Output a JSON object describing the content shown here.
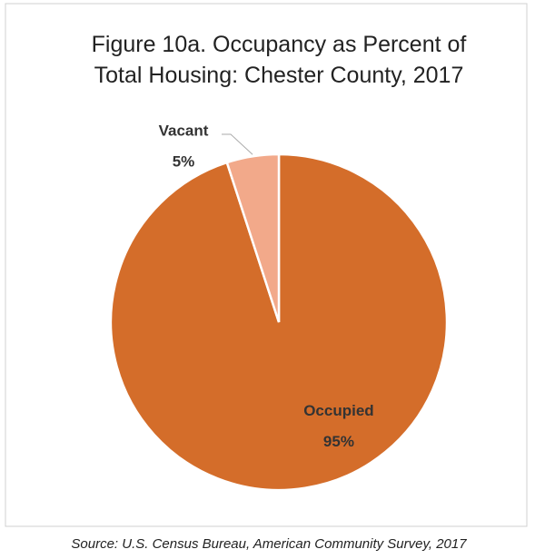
{
  "chart_data": {
    "type": "pie",
    "title": "Figure 10a. Occupancy as Percent of Total Housing: Chester County, 2017",
    "categories": [
      "Occupied",
      "Vacant"
    ],
    "values": [
      95,
      5
    ],
    "value_labels": [
      "95%",
      "5%"
    ],
    "colors": [
      "#d46d2a",
      "#f2a98a"
    ],
    "source": "Source: U.S. Census Bureau, American Community Survey, 2017"
  }
}
